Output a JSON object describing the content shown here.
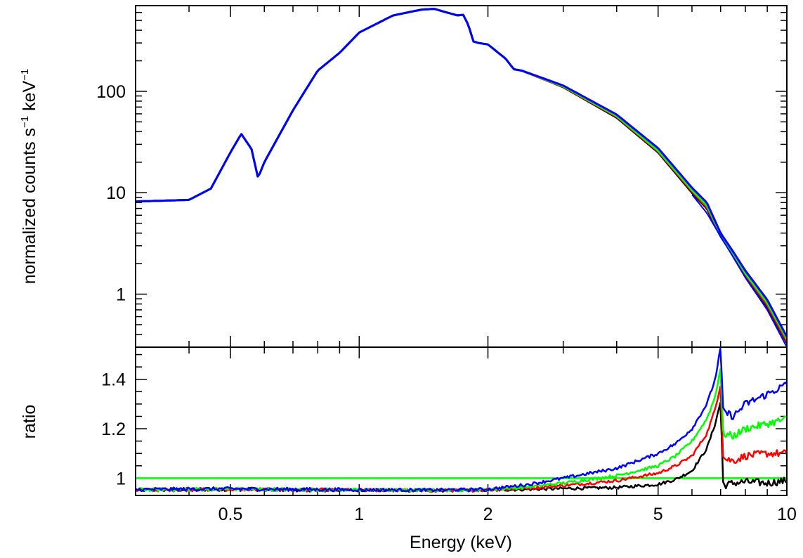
{
  "chart_data": [
    {
      "panel": "spectrum",
      "type": "line",
      "xscale": "log",
      "yscale": "log",
      "xlim": [
        0.3,
        10
      ],
      "ylim": [
        0.3,
        700
      ],
      "ylabel_parts": [
        "normalized counts s",
        "−1",
        " keV",
        "−1"
      ],
      "yticks": [
        {
          "value": 1,
          "label": "1"
        },
        {
          "value": 10,
          "label": "10"
        },
        {
          "value": 100,
          "label": "100"
        }
      ],
      "series": [
        {
          "color": "#000000",
          "x": [
            0.3,
            0.4,
            0.45,
            0.5,
            0.53,
            0.56,
            0.58,
            0.6,
            0.7,
            0.8,
            0.9,
            1.0,
            1.2,
            1.4,
            1.5,
            1.6,
            1.7,
            1.75,
            1.8,
            1.85,
            1.9,
            2.0,
            2.2,
            2.3,
            2.4,
            2.6,
            3,
            4,
            5,
            6,
            6.5,
            7,
            7.5,
            8,
            9,
            10
          ],
          "y": [
            8.2,
            8.5,
            11,
            25,
            38,
            27,
            14,
            20,
            65,
            160,
            240,
            380,
            560,
            640,
            650,
            600,
            560,
            570,
            450,
            310,
            300,
            290,
            210,
            165,
            160,
            140,
            110,
            55,
            25,
            10,
            7,
            3.7,
            2.4,
            1.5,
            0.75,
            0.33
          ]
        },
        {
          "color": "#ff0000",
          "x": [
            0.3,
            0.4,
            0.45,
            0.5,
            0.53,
            0.56,
            0.58,
            0.6,
            0.7,
            0.8,
            0.9,
            1.0,
            1.2,
            1.4,
            1.5,
            1.6,
            1.7,
            1.75,
            1.8,
            1.85,
            1.9,
            2.0,
            2.2,
            2.3,
            2.4,
            2.6,
            3,
            4,
            5,
            6,
            6.5,
            7,
            7.5,
            8,
            9,
            10
          ],
          "y": [
            8.2,
            8.5,
            11,
            25,
            38,
            27,
            14,
            20,
            65,
            160,
            240,
            380,
            560,
            640,
            650,
            600,
            560,
            570,
            450,
            310,
            300,
            290,
            210,
            165,
            160,
            140,
            111,
            56,
            25.5,
            10.3,
            7.2,
            3.8,
            2.45,
            1.55,
            0.78,
            0.34
          ]
        },
        {
          "color": "#00ff00",
          "x": [
            0.3,
            0.4,
            0.45,
            0.5,
            0.53,
            0.56,
            0.58,
            0.6,
            0.7,
            0.8,
            0.9,
            1.0,
            1.2,
            1.4,
            1.5,
            1.6,
            1.7,
            1.75,
            1.8,
            1.85,
            1.9,
            2.0,
            2.2,
            2.3,
            2.4,
            2.6,
            3,
            4,
            5,
            6,
            6.5,
            7,
            7.5,
            8,
            9,
            10
          ],
          "y": [
            8.2,
            8.5,
            11,
            25,
            38,
            27,
            14,
            20,
            65,
            160,
            240,
            380,
            560,
            640,
            650,
            600,
            560,
            570,
            450,
            310,
            300,
            290,
            210,
            165,
            160,
            141,
            112,
            57,
            26,
            10.6,
            7.5,
            3.9,
            2.5,
            1.6,
            0.82,
            0.36
          ]
        },
        {
          "color": "#0000ff",
          "x": [
            0.3,
            0.4,
            0.45,
            0.5,
            0.53,
            0.56,
            0.58,
            0.6,
            0.7,
            0.8,
            0.9,
            1.0,
            1.2,
            1.4,
            1.5,
            1.6,
            1.7,
            1.75,
            1.8,
            1.85,
            1.9,
            2.0,
            2.2,
            2.3,
            2.4,
            2.6,
            3,
            4,
            5,
            6,
            6.5,
            7,
            7.5,
            8,
            9,
            10
          ],
          "y": [
            8.2,
            8.5,
            11,
            25,
            38,
            27,
            14,
            20,
            65,
            160,
            240,
            380,
            560,
            640,
            650,
            600,
            560,
            570,
            450,
            310,
            300,
            290,
            210,
            165,
            160,
            142,
            114,
            59,
            27.5,
            11.2,
            8,
            4,
            2.6,
            1.7,
            0.88,
            0.38
          ]
        }
      ],
      "model_curve": {
        "color": "#0000ff",
        "x": [
          6,
          6.5,
          7,
          7.5,
          8,
          9,
          10
        ],
        "y": [
          9.6,
          6.3,
          3.7,
          2.3,
          1.45,
          0.7,
          0.3
        ]
      }
    },
    {
      "panel": "ratio",
      "type": "line",
      "xscale": "log",
      "yscale": "linear",
      "xlim": [
        0.3,
        10
      ],
      "ylim": [
        0.93,
        1.53
      ],
      "xlabel": "Energy (keV)",
      "ylabel": "ratio",
      "xticks": [
        {
          "value": 0.5,
          "label": "0.5"
        },
        {
          "value": 1,
          "label": "1"
        },
        {
          "value": 2,
          "label": "2"
        },
        {
          "value": 5,
          "label": "5"
        },
        {
          "value": 10,
          "label": "10"
        }
      ],
      "yticks": [
        {
          "value": 1,
          "label": "1"
        },
        {
          "value": 1.2,
          "label": "1.2"
        },
        {
          "value": 1.4,
          "label": "1.4"
        }
      ],
      "reference_line": {
        "value": 1.0,
        "color": "#00ff00"
      },
      "series": [
        {
          "color": "#000000",
          "x": [
            0.3,
            0.5,
            0.8,
            1,
            1.5,
            2,
            2.5,
            3,
            4,
            5,
            5.5,
            6,
            6.5,
            6.8,
            7.0,
            7.1,
            7.5,
            8,
            9,
            10
          ],
          "y": [
            0.952,
            0.955,
            0.952,
            0.952,
            0.95,
            0.952,
            0.955,
            0.958,
            0.962,
            0.975,
            0.995,
            1.03,
            1.12,
            1.22,
            1.31,
            0.97,
            0.98,
            0.985,
            0.98,
            0.99
          ]
        },
        {
          "color": "#ff0000",
          "x": [
            0.3,
            0.5,
            0.8,
            1,
            1.5,
            2,
            2.5,
            3,
            4,
            5,
            5.5,
            6,
            6.5,
            6.8,
            7.0,
            7.1,
            7.5,
            8,
            9,
            10
          ],
          "y": [
            0.952,
            0.955,
            0.952,
            0.952,
            0.95,
            0.952,
            0.96,
            0.97,
            0.99,
            1.02,
            1.05,
            1.09,
            1.18,
            1.28,
            1.38,
            1.08,
            1.07,
            1.09,
            1.1,
            1.1
          ]
        },
        {
          "color": "#00ff00",
          "x": [
            0.3,
            0.5,
            0.8,
            1,
            1.5,
            2,
            2.5,
            3,
            4,
            5,
            5.5,
            6,
            6.5,
            6.8,
            7.0,
            7.1,
            7.5,
            8,
            9,
            10
          ],
          "y": [
            0.953,
            0.956,
            0.953,
            0.952,
            0.951,
            0.953,
            0.965,
            0.98,
            1.01,
            1.05,
            1.09,
            1.15,
            1.24,
            1.33,
            1.45,
            1.18,
            1.17,
            1.2,
            1.22,
            1.24
          ]
        },
        {
          "color": "#0000ff",
          "x": [
            0.3,
            0.5,
            0.8,
            1,
            1.5,
            2,
            2.5,
            3,
            4,
            5,
            5.5,
            6,
            6.5,
            6.8,
            7.0,
            7.1,
            7.5,
            8,
            9,
            10
          ],
          "y": [
            0.954,
            0.957,
            0.954,
            0.953,
            0.952,
            0.955,
            0.975,
            1.0,
            1.04,
            1.1,
            1.14,
            1.2,
            1.3,
            1.4,
            1.53,
            1.27,
            1.25,
            1.3,
            1.34,
            1.38
          ]
        }
      ]
    }
  ]
}
